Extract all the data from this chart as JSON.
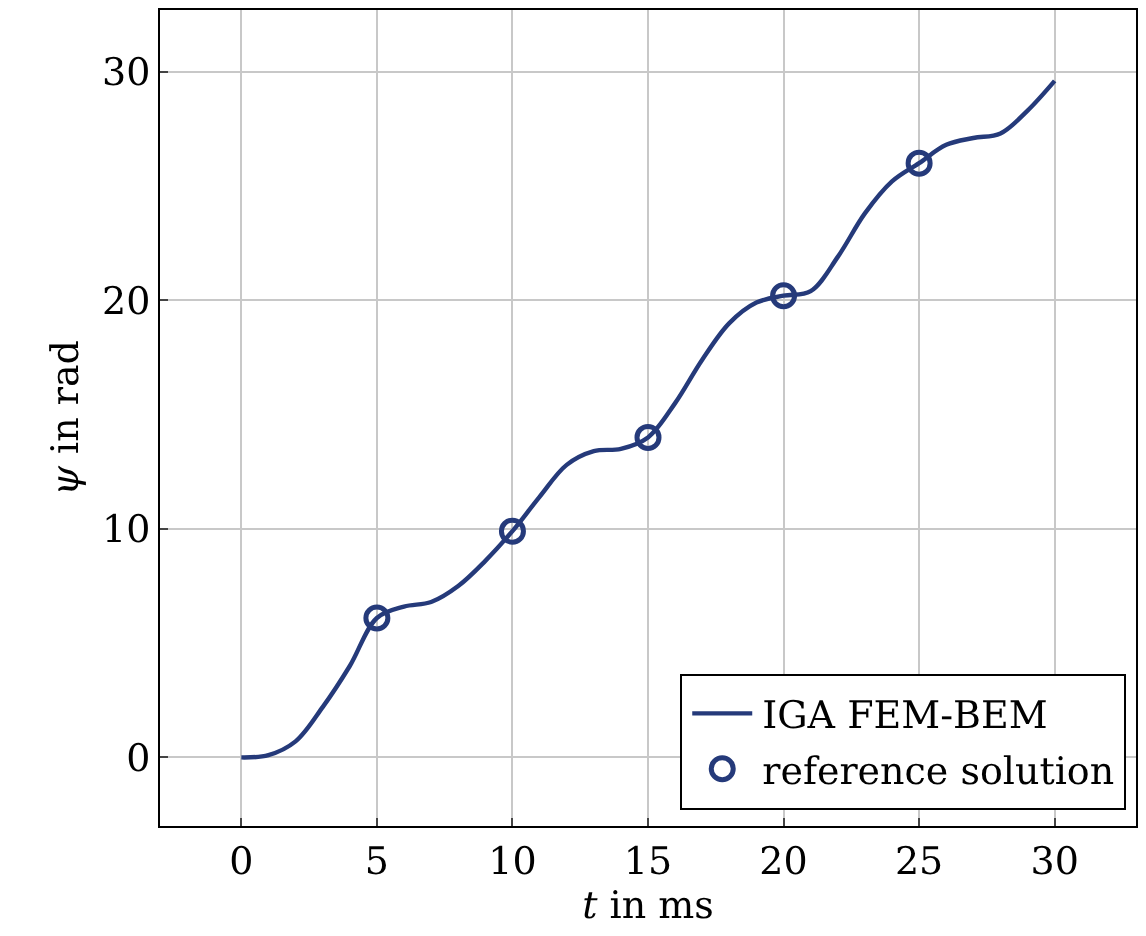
{
  "chart_data": {
    "type": "line",
    "xlabel": "t in ms",
    "ylabel": "ψ in rad",
    "xlim": [
      -3,
      33
    ],
    "ylim": [
      -3,
      32.7
    ],
    "xticks": [
      0,
      5,
      10,
      15,
      20,
      25,
      30
    ],
    "yticks": [
      0,
      10,
      20,
      30
    ],
    "grid": true,
    "legend": "bottom right",
    "series": [
      {
        "name": "IGA FEM-BEM",
        "color": "#253a7a",
        "marker": "none",
        "x": [
          0,
          1,
          2,
          3,
          4,
          5,
          6,
          7,
          8,
          9,
          10,
          11,
          12,
          13,
          14,
          15,
          16,
          17,
          18,
          19,
          20,
          21,
          22,
          23,
          24,
          25,
          26,
          27,
          28,
          29,
          30
        ],
        "values": [
          0,
          0.1,
          0.7,
          2.2,
          4.0,
          6.1,
          6.6,
          6.8,
          7.5,
          8.6,
          9.9,
          11.4,
          12.8,
          13.4,
          13.5,
          14.0,
          15.5,
          17.4,
          19.0,
          19.9,
          20.2,
          20.4,
          21.9,
          23.8,
          25.2,
          26.0,
          26.8,
          27.1,
          27.3,
          28.3,
          29.6
        ]
      },
      {
        "name": "reference solution",
        "color": "#253a7a",
        "type": "scatter",
        "marker": "circle",
        "x": [
          5,
          10,
          15,
          20,
          25
        ],
        "values": [
          6.1,
          9.9,
          14.0,
          20.2,
          26.0
        ]
      }
    ]
  }
}
